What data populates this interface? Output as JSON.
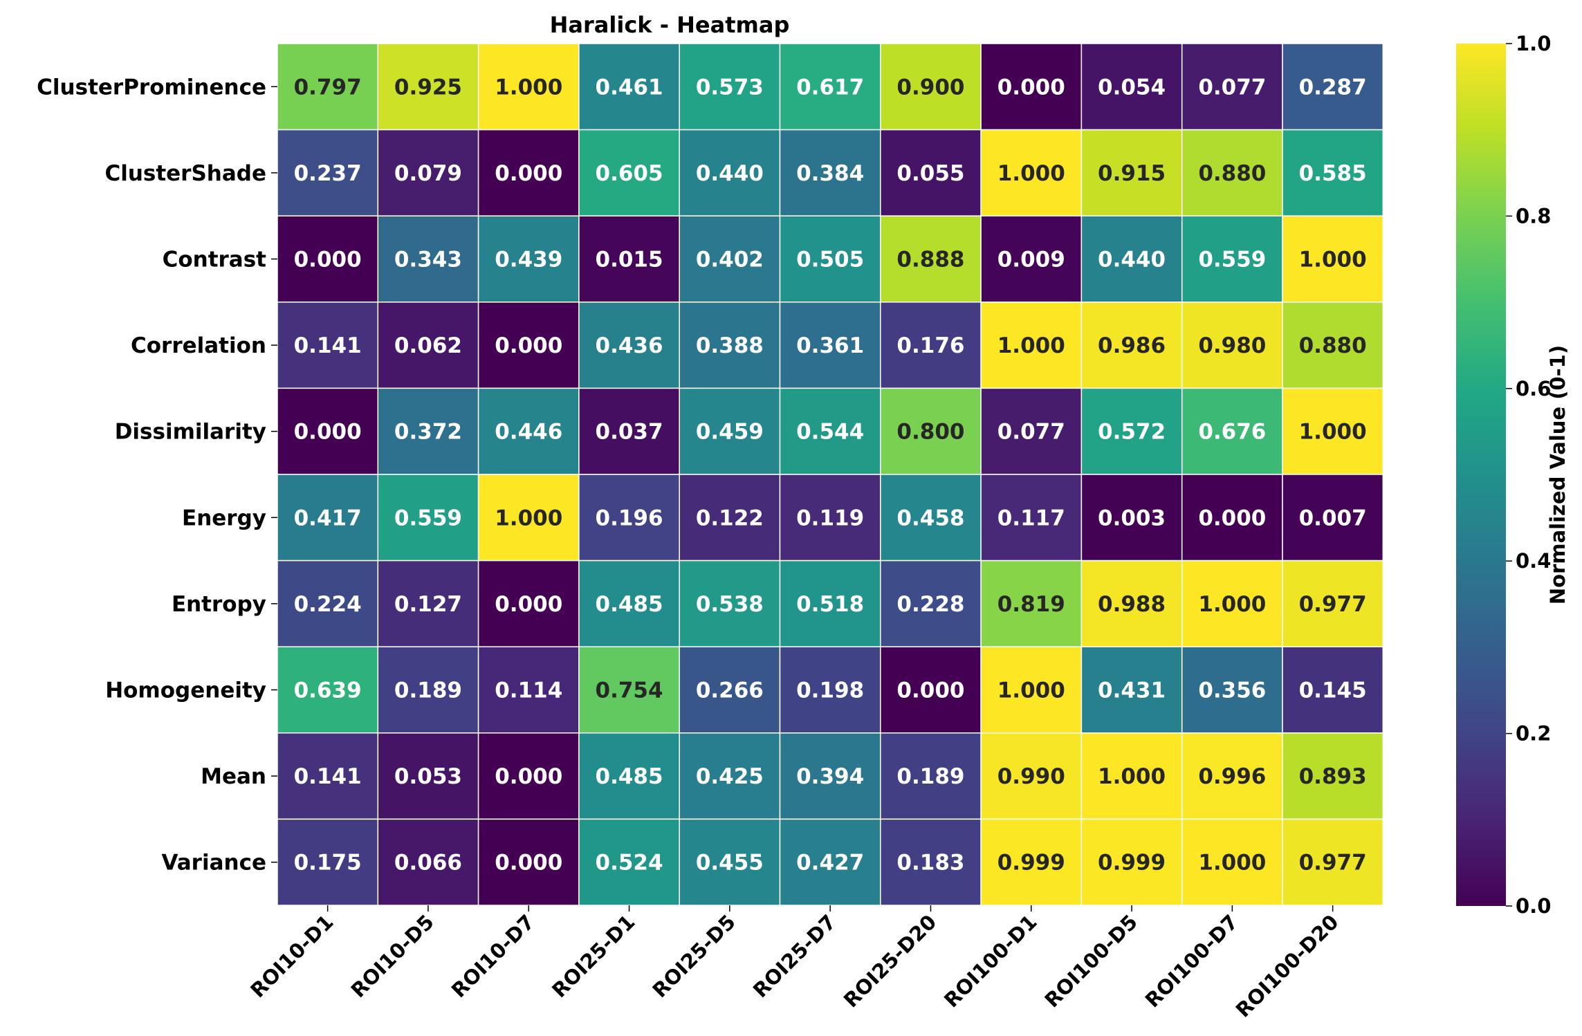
{
  "chart_data": {
    "type": "heatmap",
    "title": "Haralick - Heatmap",
    "colormap": "viridis",
    "rows": [
      "ClusterProminence",
      "ClusterShade",
      "Contrast",
      "Correlation",
      "Dissimilarity",
      "Energy",
      "Entropy",
      "Homogeneity",
      "Mean",
      "Variance"
    ],
    "columns": [
      "ROI10-D1",
      "ROI10-D5",
      "ROI10-D7",
      "ROI25-D1",
      "ROI25-D5",
      "ROI25-D7",
      "ROI25-D20",
      "ROI100-D1",
      "ROI100-D5",
      "ROI100-D7",
      "ROI100-D20"
    ],
    "values": [
      [
        0.797,
        0.925,
        1.0,
        0.461,
        0.573,
        0.617,
        0.9,
        0.0,
        0.054,
        0.077,
        0.287
      ],
      [
        0.237,
        0.079,
        0.0,
        0.605,
        0.44,
        0.384,
        0.055,
        1.0,
        0.915,
        0.88,
        0.585
      ],
      [
        0.0,
        0.343,
        0.439,
        0.015,
        0.402,
        0.505,
        0.888,
        0.009,
        0.44,
        0.559,
        1.0
      ],
      [
        0.141,
        0.062,
        0.0,
        0.436,
        0.388,
        0.361,
        0.176,
        1.0,
        0.986,
        0.98,
        0.88
      ],
      [
        0.0,
        0.372,
        0.446,
        0.037,
        0.459,
        0.544,
        0.8,
        0.077,
        0.572,
        0.676,
        1.0
      ],
      [
        0.417,
        0.559,
        1.0,
        0.196,
        0.122,
        0.119,
        0.458,
        0.117,
        0.003,
        0.0,
        0.007
      ],
      [
        0.224,
        0.127,
        0.0,
        0.485,
        0.538,
        0.518,
        0.228,
        0.819,
        0.988,
        1.0,
        0.977
      ],
      [
        0.639,
        0.189,
        0.114,
        0.754,
        0.266,
        0.198,
        0.0,
        1.0,
        0.431,
        0.356,
        0.145
      ],
      [
        0.141,
        0.053,
        0.0,
        0.485,
        0.425,
        0.394,
        0.189,
        0.99,
        1.0,
        0.996,
        0.893
      ],
      [
        0.175,
        0.066,
        0.0,
        0.524,
        0.455,
        0.427,
        0.183,
        0.999,
        0.999,
        1.0,
        0.977
      ]
    ],
    "value_format": "3 decimals",
    "colorbar": {
      "label": "Normalized Value (0-1)",
      "range": [
        0.0,
        1.0
      ],
      "ticks": [
        "0.0",
        "0.2",
        "0.4",
        "0.6",
        "0.8",
        "1.0"
      ]
    }
  }
}
